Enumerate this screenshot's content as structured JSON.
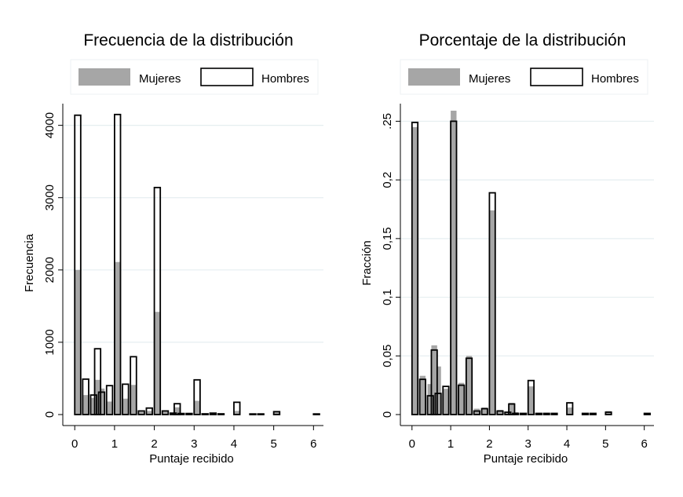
{
  "chart_data": [
    {
      "type": "bar",
      "title": "Frecuencia de la distribución",
      "xlabel": "Puntaje recibido",
      "ylabel": "Frecuencia",
      "xlim": [
        -0.3,
        6.25
      ],
      "ylim": [
        0,
        4300
      ],
      "xticks": [
        "0",
        "1",
        "2",
        "3",
        "4",
        "5",
        "6"
      ],
      "yticks": [
        "0",
        "1000",
        "2000",
        "3000",
        "4000"
      ],
      "grid": true,
      "legend_position": "top",
      "series": [
        {
          "name": "Mujeres",
          "style": "filled",
          "color": "#a6a6a6",
          "x": [
            0.0,
            0.2,
            0.4,
            0.5,
            0.6,
            0.8,
            1.0,
            1.2,
            1.4,
            1.6,
            1.8,
            2.0,
            2.2,
            2.4,
            2.5,
            2.6,
            2.8,
            3.0,
            3.2,
            3.4,
            3.6,
            4.0,
            4.4,
            4.6,
            5.0,
            6.0
          ],
          "values": [
            2000,
            270,
            230,
            480,
            360,
            180,
            2110,
            220,
            410,
            40,
            50,
            1420,
            60,
            20,
            100,
            20,
            15,
            190,
            10,
            15,
            10,
            50,
            8,
            5,
            40,
            5
          ]
        },
        {
          "name": "Hombres",
          "style": "outline",
          "color": "#000000",
          "x": [
            0.0,
            0.2,
            0.4,
            0.5,
            0.6,
            0.8,
            1.0,
            1.2,
            1.4,
            1.6,
            1.8,
            2.0,
            2.2,
            2.4,
            2.5,
            2.6,
            2.8,
            3.0,
            3.2,
            3.4,
            3.6,
            4.0,
            4.4,
            4.6,
            5.0,
            6.0
          ],
          "values": [
            4140,
            490,
            270,
            910,
            310,
            400,
            4150,
            420,
            800,
            50,
            90,
            3140,
            50,
            20,
            150,
            15,
            15,
            480,
            10,
            20,
            10,
            170,
            8,
            5,
            40,
            5
          ]
        }
      ]
    },
    {
      "type": "bar",
      "title": "Porcentaje de la distribución",
      "xlabel": "Puntaje recibido",
      "ylabel": "Fracción",
      "xlim": [
        -0.3,
        6.25
      ],
      "ylim": [
        0,
        0.265
      ],
      "xticks": [
        "0",
        "1",
        "2",
        "3",
        "4",
        "5",
        "6"
      ],
      "yticks": [
        "0",
        "0,05",
        "0,1",
        "0,15",
        "0,2",
        ".25"
      ],
      "grid": true,
      "legend_position": "top",
      "series": [
        {
          "name": "Mujeres",
          "style": "filled",
          "color": "#a6a6a6",
          "x": [
            0.0,
            0.2,
            0.4,
            0.5,
            0.6,
            0.8,
            1.0,
            1.2,
            1.4,
            1.6,
            1.8,
            2.0,
            2.2,
            2.4,
            2.5,
            2.6,
            2.8,
            3.0,
            3.2,
            3.4,
            3.6,
            4.0,
            4.4,
            4.6,
            5.0,
            6.0
          ],
          "values": [
            0.245,
            0.033,
            0.026,
            0.059,
            0.041,
            0.022,
            0.259,
            0.027,
            0.05,
            0.005,
            0.006,
            0.174,
            0.004,
            0.002,
            0.01,
            0.002,
            0.001,
            0.024,
            0.001,
            0.001,
            0.001,
            0.006,
            0.001,
            0.001,
            0.003,
            0.001
          ]
        },
        {
          "name": "Hombres",
          "style": "outline",
          "color": "#000000",
          "x": [
            0.0,
            0.2,
            0.4,
            0.5,
            0.6,
            0.8,
            1.0,
            1.2,
            1.4,
            1.6,
            1.8,
            2.0,
            2.2,
            2.4,
            2.5,
            2.6,
            2.8,
            3.0,
            3.2,
            3.4,
            3.6,
            4.0,
            4.4,
            4.6,
            5.0,
            6.0
          ],
          "values": [
            0.249,
            0.03,
            0.016,
            0.055,
            0.018,
            0.024,
            0.25,
            0.025,
            0.048,
            0.003,
            0.005,
            0.189,
            0.003,
            0.002,
            0.009,
            0.001,
            0.001,
            0.029,
            0.001,
            0.001,
            0.001,
            0.01,
            0.001,
            0.001,
            0.002,
            0.001
          ]
        }
      ]
    }
  ]
}
